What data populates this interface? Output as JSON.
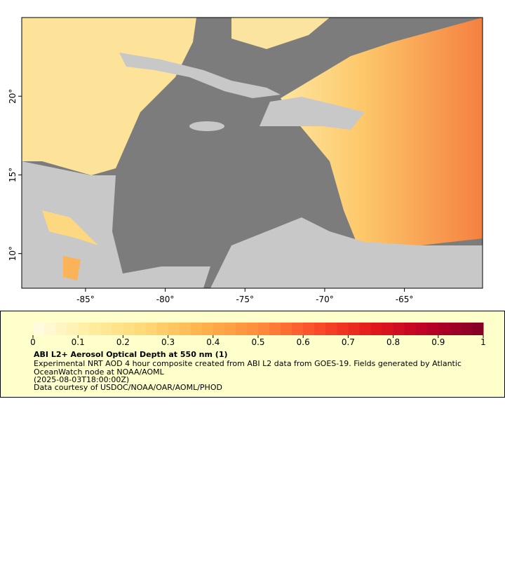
{
  "map": {
    "xlim": [
      -89,
      -60.1
    ],
    "ylim": [
      7.8,
      25
    ],
    "xticks": [
      {
        "value": -85,
        "label": "-85°"
      },
      {
        "value": -80,
        "label": "-80°"
      },
      {
        "value": -75,
        "label": "-75°"
      },
      {
        "value": -70,
        "label": "-70°"
      },
      {
        "value": -65,
        "label": "-65°"
      }
    ],
    "yticks": [
      {
        "value": 10,
        "label": "10°"
      },
      {
        "value": 15,
        "label": "15°"
      },
      {
        "value": 20,
        "label": "20°"
      }
    ]
  },
  "colorbar": {
    "lim": [
      0,
      1
    ],
    "ticks": [
      0,
      0.1,
      0.2,
      0.3,
      0.4,
      0.5,
      0.6,
      0.7,
      0.8,
      0.9,
      1
    ],
    "colors": [
      "#fffde6",
      "#ffeda0",
      "#fed976",
      "#feb24c",
      "#fd8d3c",
      "#fc4e2a",
      "#e31a1c",
      "#bd0026",
      "#800026"
    ]
  },
  "legend": {
    "title": "ABI L2+ Aerosol Optical Depth at 550 nm (1)",
    "description": "Experimental NRT AOD 4 hour composite created from ABI L2 data from GOES-19. Fields generated by Atlantic OceanWatch node at NOAA/AOML",
    "time": "(2025-08-03T18:00:00Z)",
    "credit": "Data courtesy of USDOC/NOAA/OAR/AOML/PHOD"
  }
}
